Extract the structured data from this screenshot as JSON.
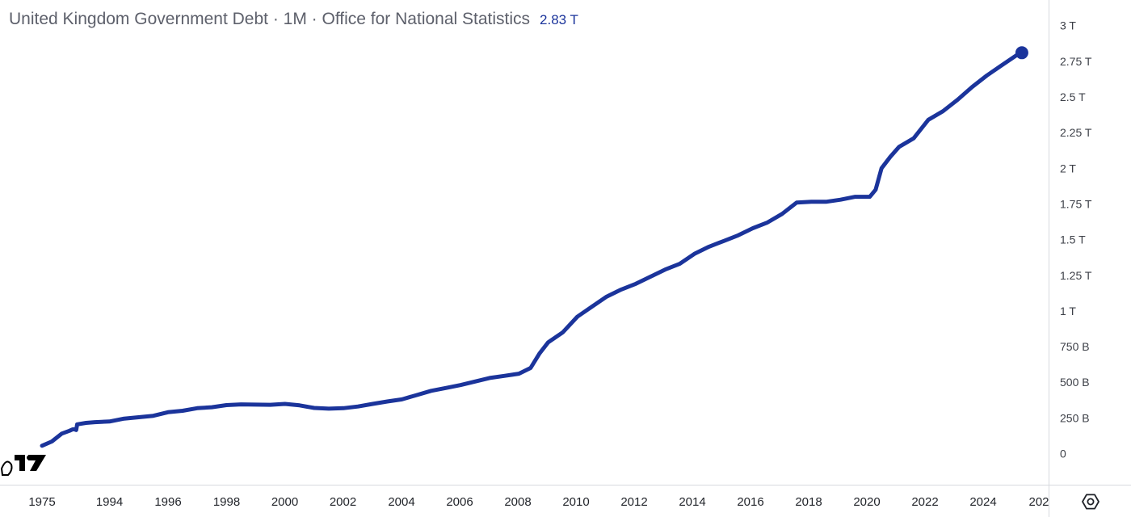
{
  "header": {
    "title": "United Kingdom Government Debt · 1M · Office for National Statistics",
    "last_value": "2.83 T"
  },
  "colors": {
    "line": "#1b349b",
    "axis_text": "#1f2228",
    "price_text": "#3d4048",
    "axis_border": "#d7d9de",
    "title_text": "#5d606b"
  },
  "icons": {
    "logo": "tradingview-logo-icon",
    "settings": "settings-gear-icon"
  },
  "chart_data": {
    "type": "line",
    "x_tick_labels": [
      "1975",
      "1994",
      "1996",
      "1998",
      "2000",
      "2002",
      "2004",
      "2006",
      "2008",
      "2010",
      "2012",
      "2014",
      "2016",
      "2018",
      "2020",
      "2022",
      "2024",
      "202"
    ],
    "y_tick_labels": [
      "0",
      "250 B",
      "500 B",
      "750 B",
      "1 T",
      "1.25 T",
      "1.5 T",
      "1.75 T",
      "2 T",
      "2.25 T",
      "2.5 T",
      "2.75 T",
      "3 T"
    ],
    "y_ticks": [
      0,
      250,
      500,
      750,
      1000,
      1250,
      1500,
      1750,
      2000,
      2250,
      2500,
      2750,
      3000
    ],
    "ylim": [
      -60,
      3100
    ],
    "y_unit": "billions GBP",
    "y_scale": "linear",
    "x_axis_note": "compressed timeline: sparse data before 1993, then monthly",
    "grid": false,
    "series": [
      {
        "values": [
          [
            1975.0,
            55
          ],
          [
            1980.0,
            85
          ],
          [
            1985.0,
            140
          ],
          [
            1989.0,
            160
          ],
          [
            1990.5,
            170
          ],
          [
            1991.5,
            170
          ],
          [
            1992.3,
            165
          ],
          [
            1992.8,
            205
          ],
          [
            1993.2,
            215
          ],
          [
            1993.5,
            220
          ],
          [
            1994.0,
            225
          ],
          [
            1994.5,
            245
          ],
          [
            1995.0,
            255
          ],
          [
            1995.5,
            265
          ],
          [
            1996.0,
            290
          ],
          [
            1996.5,
            300
          ],
          [
            1997.0,
            318
          ],
          [
            1997.5,
            325
          ],
          [
            1998.0,
            340
          ],
          [
            1998.5,
            345
          ],
          [
            1999.0,
            343
          ],
          [
            1999.5,
            342
          ],
          [
            2000.0,
            348
          ],
          [
            2000.5,
            338
          ],
          [
            2001.0,
            320
          ],
          [
            2001.5,
            315
          ],
          [
            2002.0,
            318
          ],
          [
            2002.5,
            330
          ],
          [
            2003.0,
            348
          ],
          [
            2003.5,
            365
          ],
          [
            2004.0,
            380
          ],
          [
            2004.5,
            410
          ],
          [
            2005.0,
            440
          ],
          [
            2005.5,
            460
          ],
          [
            2006.0,
            480
          ],
          [
            2006.5,
            505
          ],
          [
            2007.0,
            530
          ],
          [
            2007.5,
            545
          ],
          [
            2008.0,
            560
          ],
          [
            2008.4,
            600
          ],
          [
            2008.7,
            700
          ],
          [
            2009.0,
            780
          ],
          [
            2009.5,
            850
          ],
          [
            2010.0,
            960
          ],
          [
            2010.5,
            1030
          ],
          [
            2011.0,
            1100
          ],
          [
            2011.5,
            1150
          ],
          [
            2012.0,
            1190
          ],
          [
            2012.5,
            1240
          ],
          [
            2013.0,
            1290
          ],
          [
            2013.5,
            1330
          ],
          [
            2014.0,
            1400
          ],
          [
            2014.5,
            1450
          ],
          [
            2015.0,
            1490
          ],
          [
            2015.5,
            1530
          ],
          [
            2016.0,
            1580
          ],
          [
            2016.5,
            1620
          ],
          [
            2017.0,
            1680
          ],
          [
            2017.5,
            1760
          ],
          [
            2018.0,
            1765
          ],
          [
            2018.5,
            1765
          ],
          [
            2019.0,
            1780
          ],
          [
            2019.5,
            1800
          ],
          [
            2020.0,
            1800
          ],
          [
            2020.2,
            1850
          ],
          [
            2020.4,
            2000
          ],
          [
            2020.7,
            2080
          ],
          [
            2021.0,
            2150
          ],
          [
            2021.5,
            2210
          ],
          [
            2022.0,
            2340
          ],
          [
            2022.5,
            2400
          ],
          [
            2023.0,
            2480
          ],
          [
            2023.5,
            2570
          ],
          [
            2024.0,
            2650
          ],
          [
            2024.5,
            2720
          ],
          [
            2025.0,
            2790
          ],
          [
            2025.2,
            2810
          ]
        ]
      }
    ]
  }
}
